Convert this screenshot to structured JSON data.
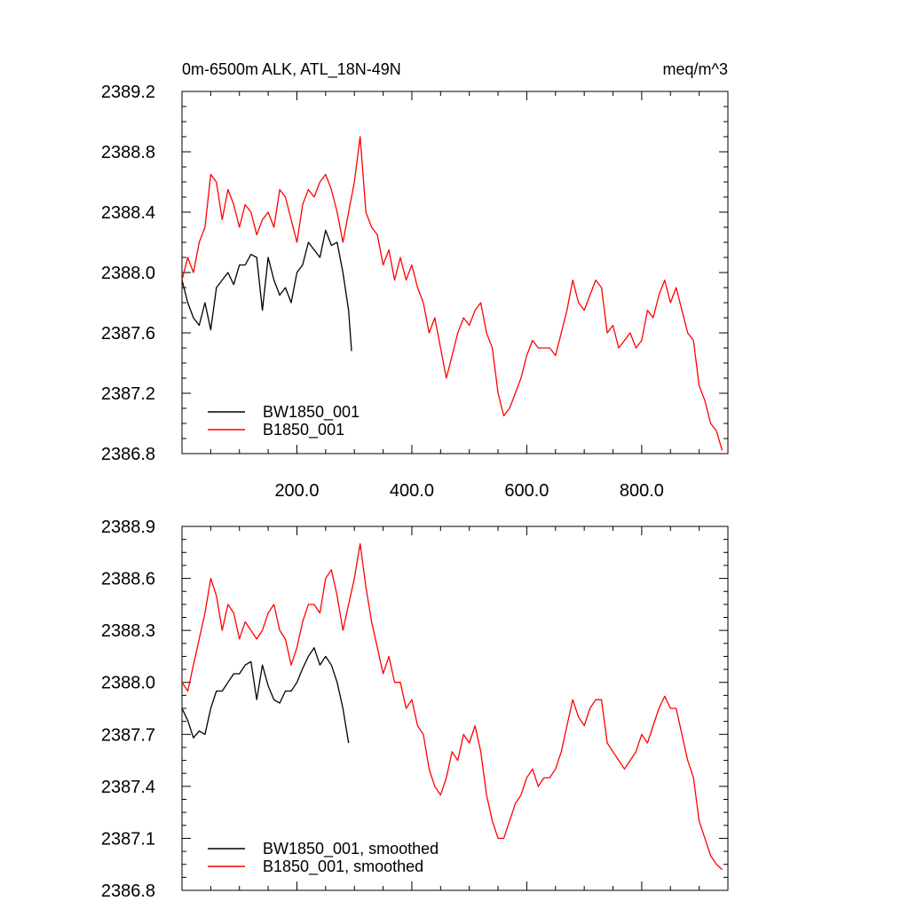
{
  "chart_data": [
    {
      "type": "line",
      "title": "0m-6500m ALK, ATL_18N-49N",
      "units": "meq/m^3",
      "xlim": [
        0,
        950
      ],
      "ylim": [
        2386.8,
        2389.2
      ],
      "x_ticks": [
        200,
        400,
        600,
        800
      ],
      "x_tick_labels": [
        "200.0",
        "400.0",
        "600.0",
        "800.0"
      ],
      "y_ticks": [
        2386.8,
        2387.2,
        2387.6,
        2388.0,
        2388.4,
        2388.8,
        2389.2
      ],
      "y_tick_labels": [
        "2386.8",
        "2387.2",
        "2387.6",
        "2388.0",
        "2388.4",
        "2388.8",
        "2389.2"
      ],
      "legend_position": "bottom-left",
      "series": [
        {
          "name": "BW1850_001",
          "color": "#000000",
          "x": [
            0,
            10,
            20,
            30,
            40,
            50,
            60,
            70,
            80,
            90,
            100,
            110,
            120,
            130,
            140,
            150,
            160,
            170,
            180,
            190,
            200,
            210,
            220,
            230,
            240,
            250,
            260,
            270,
            280,
            290,
            295
          ],
          "y": [
            2387.95,
            2387.8,
            2387.7,
            2387.65,
            2387.8,
            2387.62,
            2387.9,
            2387.95,
            2388.0,
            2387.92,
            2388.05,
            2388.05,
            2388.12,
            2388.1,
            2387.75,
            2388.1,
            2387.95,
            2387.85,
            2387.9,
            2387.8,
            2388.0,
            2388.05,
            2388.2,
            2388.15,
            2388.1,
            2388.28,
            2388.18,
            2388.2,
            2388.0,
            2387.75,
            2387.48
          ]
        },
        {
          "name": "B1850_001",
          "color": "#ff0000",
          "x": [
            0,
            10,
            20,
            30,
            40,
            50,
            60,
            70,
            80,
            90,
            100,
            110,
            120,
            130,
            140,
            150,
            160,
            170,
            180,
            190,
            200,
            210,
            220,
            230,
            240,
            250,
            260,
            270,
            280,
            290,
            300,
            310,
            320,
            330,
            340,
            350,
            360,
            370,
            380,
            390,
            400,
            410,
            420,
            430,
            440,
            450,
            460,
            470,
            480,
            490,
            500,
            510,
            520,
            530,
            540,
            550,
            560,
            570,
            580,
            590,
            600,
            610,
            620,
            630,
            640,
            650,
            660,
            670,
            680,
            690,
            700,
            710,
            720,
            730,
            740,
            750,
            760,
            770,
            780,
            790,
            800,
            810,
            820,
            830,
            840,
            850,
            860,
            870,
            880,
            890,
            900,
            910,
            920,
            930,
            940
          ],
          "y": [
            2387.95,
            2388.1,
            2388.0,
            2388.2,
            2388.3,
            2388.65,
            2388.6,
            2388.35,
            2388.55,
            2388.45,
            2388.3,
            2388.45,
            2388.4,
            2388.25,
            2388.35,
            2388.4,
            2388.3,
            2388.55,
            2388.5,
            2388.35,
            2388.2,
            2388.45,
            2388.55,
            2388.5,
            2388.6,
            2388.65,
            2388.55,
            2388.4,
            2388.2,
            2388.4,
            2388.6,
            2388.9,
            2388.4,
            2388.3,
            2388.25,
            2388.05,
            2388.15,
            2387.95,
            2388.1,
            2387.95,
            2388.05,
            2387.9,
            2387.8,
            2387.6,
            2387.7,
            2387.5,
            2387.3,
            2387.45,
            2387.6,
            2387.7,
            2387.65,
            2387.75,
            2387.8,
            2387.6,
            2387.5,
            2387.2,
            2387.05,
            2387.1,
            2387.2,
            2387.3,
            2387.45,
            2387.55,
            2387.5,
            2387.5,
            2387.5,
            2387.45,
            2387.6,
            2387.75,
            2387.95,
            2387.8,
            2387.75,
            2387.85,
            2387.95,
            2387.9,
            2387.6,
            2387.65,
            2387.5,
            2387.55,
            2387.6,
            2387.5,
            2387.55,
            2387.75,
            2387.7,
            2387.85,
            2387.95,
            2387.8,
            2387.9,
            2387.75,
            2387.6,
            2387.55,
            2387.25,
            2387.15,
            2387.0,
            2386.95,
            2386.82
          ]
        }
      ]
    },
    {
      "type": "line",
      "title": "",
      "xlim": [
        0,
        950
      ],
      "ylim": [
        2386.8,
        2388.9
      ],
      "x_ticks": [
        200,
        400,
        600,
        800
      ],
      "x_tick_labels": [],
      "y_ticks": [
        2386.8,
        2387.1,
        2387.4,
        2387.7,
        2388.0,
        2388.3,
        2388.6,
        2388.9
      ],
      "y_tick_labels": [
        "2386.8",
        "2387.1",
        "2387.4",
        "2387.7",
        "2388.0",
        "2388.3",
        "2388.6",
        "2388.9"
      ],
      "legend_position": "bottom-left",
      "series": [
        {
          "name": "BW1850_001, smoothed",
          "color": "#000000",
          "x": [
            0,
            10,
            20,
            30,
            40,
            50,
            60,
            70,
            80,
            90,
            100,
            110,
            120,
            130,
            140,
            150,
            160,
            170,
            180,
            190,
            200,
            210,
            220,
            230,
            240,
            250,
            260,
            270,
            280,
            290
          ],
          "y": [
            2387.85,
            2387.78,
            2387.68,
            2387.72,
            2387.7,
            2387.85,
            2387.95,
            2387.95,
            2388.0,
            2388.05,
            2388.05,
            2388.1,
            2388.12,
            2387.9,
            2388.1,
            2387.98,
            2387.9,
            2387.88,
            2387.95,
            2387.95,
            2388.0,
            2388.08,
            2388.15,
            2388.2,
            2388.1,
            2388.15,
            2388.1,
            2388.0,
            2387.85,
            2387.65
          ]
        },
        {
          "name": "B1850_001, smoothed",
          "color": "#ff0000",
          "x": [
            0,
            10,
            20,
            30,
            40,
            50,
            60,
            70,
            80,
            90,
            100,
            110,
            120,
            130,
            140,
            150,
            160,
            170,
            180,
            190,
            200,
            210,
            220,
            230,
            240,
            250,
            260,
            270,
            280,
            290,
            300,
            310,
            320,
            330,
            340,
            350,
            360,
            370,
            380,
            390,
            400,
            410,
            420,
            430,
            440,
            450,
            460,
            470,
            480,
            490,
            500,
            510,
            520,
            530,
            540,
            550,
            560,
            570,
            580,
            590,
            600,
            610,
            620,
            630,
            640,
            650,
            660,
            670,
            680,
            690,
            700,
            710,
            720,
            730,
            740,
            750,
            760,
            770,
            780,
            790,
            800,
            810,
            820,
            830,
            840,
            850,
            860,
            870,
            880,
            890,
            900,
            910,
            920,
            930,
            940
          ],
          "y": [
            2388.0,
            2387.95,
            2388.1,
            2388.25,
            2388.4,
            2388.6,
            2388.5,
            2388.3,
            2388.45,
            2388.4,
            2388.25,
            2388.35,
            2388.3,
            2388.25,
            2388.3,
            2388.4,
            2388.45,
            2388.3,
            2388.25,
            2388.1,
            2388.2,
            2388.35,
            2388.45,
            2388.45,
            2388.4,
            2388.6,
            2388.65,
            2388.5,
            2388.3,
            2388.45,
            2388.6,
            2388.8,
            2388.55,
            2388.35,
            2388.2,
            2388.05,
            2388.15,
            2388.0,
            2388.0,
            2387.85,
            2387.9,
            2387.75,
            2387.7,
            2387.5,
            2387.4,
            2387.35,
            2387.45,
            2387.6,
            2387.55,
            2387.7,
            2387.65,
            2387.75,
            2387.6,
            2387.35,
            2387.2,
            2387.1,
            2387.1,
            2387.2,
            2387.3,
            2387.35,
            2387.45,
            2387.5,
            2387.4,
            2387.45,
            2387.45,
            2387.5,
            2387.6,
            2387.75,
            2387.9,
            2387.8,
            2387.75,
            2387.85,
            2387.9,
            2387.9,
            2387.65,
            2387.6,
            2387.55,
            2387.5,
            2387.55,
            2387.6,
            2387.7,
            2387.65,
            2387.75,
            2387.85,
            2387.92,
            2387.85,
            2387.85,
            2387.7,
            2387.55,
            2387.45,
            2387.2,
            2387.1,
            2387.0,
            2386.95,
            2386.92
          ]
        }
      ]
    }
  ]
}
